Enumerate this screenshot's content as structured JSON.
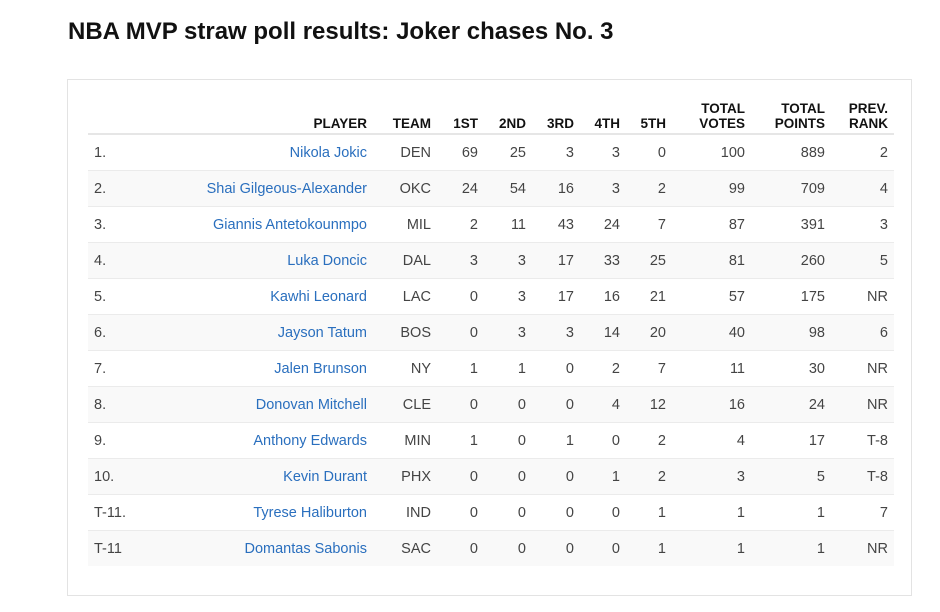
{
  "title": "NBA MVP straw poll results: Joker chases No. 3",
  "columns": {
    "rank": "",
    "player": "PLAYER",
    "team": "TEAM",
    "first": "1ST",
    "second": "2ND",
    "third": "3RD",
    "fourth": "4TH",
    "fifth": "5TH",
    "total_votes_l1": "TOTAL",
    "total_votes_l2": "VOTES",
    "total_points_l1": "TOTAL",
    "total_points_l2": "POINTS",
    "prev_rank_l1": "PREV.",
    "prev_rank_l2": "RANK"
  },
  "link_color": "#2a6fbe",
  "rows": [
    {
      "rank": "1.",
      "player": "Nikola Jokic",
      "team": "DEN",
      "first": "69",
      "second": "25",
      "third": "3",
      "fourth": "3",
      "fifth": "0",
      "total_votes": "100",
      "total_points": "889",
      "prev_rank": "2"
    },
    {
      "rank": "2.",
      "player": "Shai Gilgeous-Alexander",
      "team": "OKC",
      "first": "24",
      "second": "54",
      "third": "16",
      "fourth": "3",
      "fifth": "2",
      "total_votes": "99",
      "total_points": "709",
      "prev_rank": "4"
    },
    {
      "rank": "3.",
      "player": "Giannis Antetokounmpo",
      "team": "MIL",
      "first": "2",
      "second": "11",
      "third": "43",
      "fourth": "24",
      "fifth": "7",
      "total_votes": "87",
      "total_points": "391",
      "prev_rank": "3"
    },
    {
      "rank": "4.",
      "player": "Luka Doncic",
      "team": "DAL",
      "first": "3",
      "second": "3",
      "third": "17",
      "fourth": "33",
      "fifth": "25",
      "total_votes": "81",
      "total_points": "260",
      "prev_rank": "5"
    },
    {
      "rank": "5.",
      "player": "Kawhi Leonard",
      "team": "LAC",
      "first": "0",
      "second": "3",
      "third": "17",
      "fourth": "16",
      "fifth": "21",
      "total_votes": "57",
      "total_points": "175",
      "prev_rank": "NR"
    },
    {
      "rank": "6.",
      "player": "Jayson Tatum",
      "team": "BOS",
      "first": "0",
      "second": "3",
      "third": "3",
      "fourth": "14",
      "fifth": "20",
      "total_votes": "40",
      "total_points": "98",
      "prev_rank": "6"
    },
    {
      "rank": "7.",
      "player": "Jalen Brunson",
      "team": "NY",
      "first": "1",
      "second": "1",
      "third": "0",
      "fourth": "2",
      "fifth": "7",
      "total_votes": "11",
      "total_points": "30",
      "prev_rank": "NR"
    },
    {
      "rank": "8.",
      "player": "Donovan Mitchell",
      "team": "CLE",
      "first": "0",
      "second": "0",
      "third": "0",
      "fourth": "4",
      "fifth": "12",
      "total_votes": "16",
      "total_points": "24",
      "prev_rank": "NR"
    },
    {
      "rank": "9.",
      "player": "Anthony Edwards",
      "team": "MIN",
      "first": "1",
      "second": "0",
      "third": "1",
      "fourth": "0",
      "fifth": "2",
      "total_votes": "4",
      "total_points": "17",
      "prev_rank": "T-8"
    },
    {
      "rank": "10.",
      "player": "Kevin Durant",
      "team": "PHX",
      "first": "0",
      "second": "0",
      "third": "0",
      "fourth": "1",
      "fifth": "2",
      "total_votes": "3",
      "total_points": "5",
      "prev_rank": "T-8"
    },
    {
      "rank": "T-11.",
      "player": "Tyrese Haliburton",
      "team": "IND",
      "first": "0",
      "second": "0",
      "third": "0",
      "fourth": "0",
      "fifth": "1",
      "total_votes": "1",
      "total_points": "1",
      "prev_rank": "7"
    },
    {
      "rank": "T-11",
      "player": "Domantas Sabonis",
      "team": "SAC",
      "first": "0",
      "second": "0",
      "third": "0",
      "fourth": "0",
      "fifth": "1",
      "total_votes": "1",
      "total_points": "1",
      "prev_rank": "NR"
    }
  ]
}
